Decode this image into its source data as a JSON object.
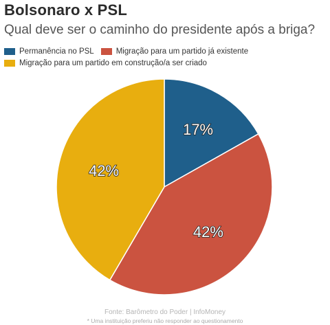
{
  "header": {
    "title": "Bolsonaro x PSL",
    "subtitle": "Qual deve ser o caminho do presidente após a briga?"
  },
  "legend": {
    "items": [
      {
        "label": "Permanência no PSL",
        "color": "#1f5f8b"
      },
      {
        "label": "Migração para um partido já existente",
        "color": "#cb5340"
      },
      {
        "label": "Migração para um partido em construção/a ser criado",
        "color": "#e8ae0f"
      }
    ]
  },
  "chart_data": {
    "type": "pie",
    "title": "Qual deve ser o caminho do presidente após a briga?",
    "slices": [
      {
        "label": "Permanência no PSL",
        "value": 17,
        "display": "17%",
        "color": "#1f5f8b"
      },
      {
        "label": "Migração para um partido já existente",
        "value": 42,
        "display": "42%",
        "color": "#cb5340"
      },
      {
        "label": "Migração para um partido em construção/a ser criado",
        "value": 42,
        "display": "42%",
        "color": "#e8ae0f"
      }
    ],
    "legend_position": "top-left"
  },
  "footer": {
    "source": "Fonte: Barômetro do Poder | InfoMoney",
    "note": "* Uma instituição preferiu não responder ao questionamento"
  }
}
